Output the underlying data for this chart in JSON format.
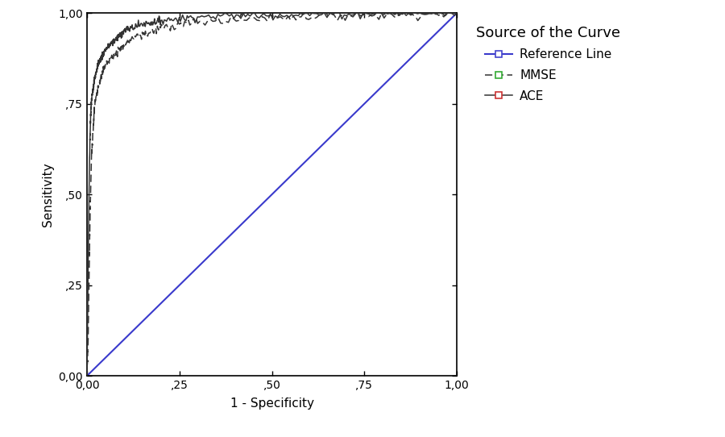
{
  "xlabel": "1 - Specificity",
  "ylabel": "Sensitivity",
  "xlim": [
    0,
    1
  ],
  "ylim": [
    0,
    1
  ],
  "xticks": [
    0.0,
    0.25,
    0.5,
    0.75,
    1.0
  ],
  "yticks": [
    0.0,
    0.25,
    0.5,
    0.75,
    1.0
  ],
  "xticklabels": [
    "0,00",
    ",25",
    ",50",
    ",75",
    "1,00"
  ],
  "yticklabels": [
    "0,00",
    ",25",
    ",50",
    ",75",
    "1,00"
  ],
  "reference_line_color": "#3a3acc",
  "ace_color": "#333333",
  "mmse_color": "#333333",
  "legend_title": "Source of the Curve",
  "legend_entries": [
    "Reference Line",
    "MMSE",
    "ACE"
  ],
  "ref_marker_color": "#4444cc",
  "mmse_marker_color": "#33aa33",
  "ace_marker_color": "#cc3333",
  "background_color": "#ffffff",
  "ace_fpr": [
    0,
    0.003,
    0.006,
    0.008,
    0.01,
    0.012,
    0.015,
    0.018,
    0.02,
    0.025,
    0.03,
    0.035,
    0.04,
    0.05,
    0.06,
    0.07,
    0.08,
    0.09,
    0.1,
    0.12,
    0.15,
    0.18,
    0.2,
    0.25,
    0.3,
    0.4,
    0.5,
    0.6,
    0.7,
    0.8,
    0.9,
    1.0
  ],
  "ace_tpr": [
    0,
    0.3,
    0.55,
    0.65,
    0.72,
    0.76,
    0.78,
    0.8,
    0.82,
    0.84,
    0.86,
    0.87,
    0.88,
    0.9,
    0.91,
    0.92,
    0.93,
    0.94,
    0.95,
    0.96,
    0.97,
    0.975,
    0.98,
    0.985,
    0.99,
    0.993,
    0.995,
    0.997,
    0.998,
    0.999,
    0.9995,
    1.0
  ],
  "mmse_fpr": [
    0,
    0.003,
    0.006,
    0.008,
    0.01,
    0.012,
    0.015,
    0.018,
    0.02,
    0.025,
    0.03,
    0.04,
    0.05,
    0.07,
    0.09,
    0.1,
    0.12,
    0.15,
    0.18,
    0.2,
    0.25,
    0.3,
    0.4,
    0.5,
    0.6,
    0.7,
    0.8,
    0.9,
    1.0
  ],
  "mmse_tpr": [
    0,
    0.1,
    0.3,
    0.42,
    0.52,
    0.6,
    0.65,
    0.7,
    0.74,
    0.77,
    0.8,
    0.83,
    0.86,
    0.88,
    0.9,
    0.91,
    0.93,
    0.94,
    0.95,
    0.96,
    0.97,
    0.975,
    0.983,
    0.988,
    0.991,
    0.994,
    0.996,
    0.998,
    1.0
  ]
}
